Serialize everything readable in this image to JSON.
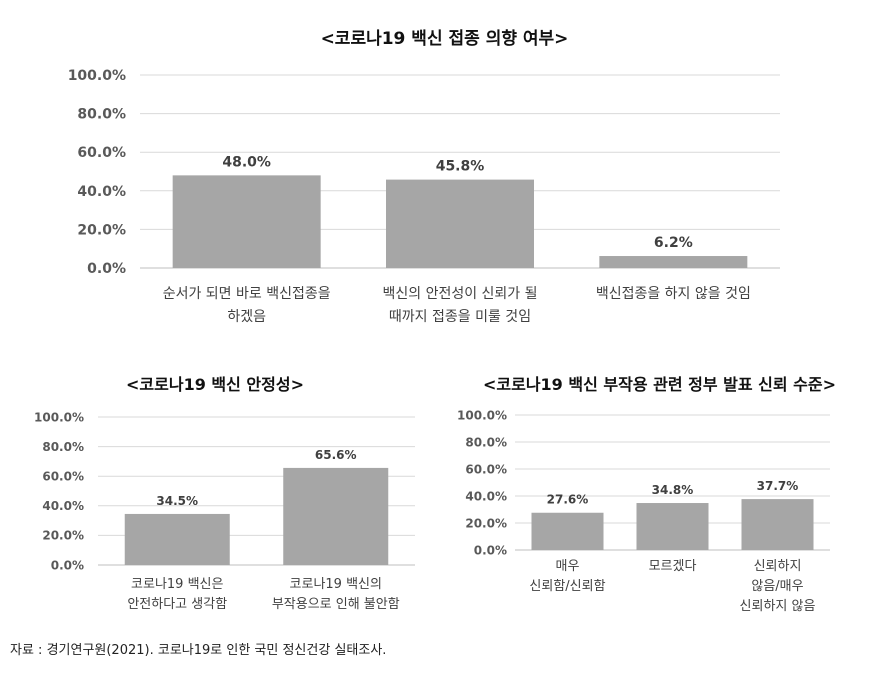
{
  "chart_data": [
    {
      "type": "bar",
      "title": "<코로나19 백신 접종 의향 여부>",
      "categories": [
        "순서가 되면 바로 백신접종을 하겠음",
        "백신의 안전성이 신뢰가 될 때까지 접종을 미룰 것임",
        "백신접종을 하지 않을 것임"
      ],
      "category_lines": [
        [
          "순서가 되면 바로 백신접종을",
          "하겠음"
        ],
        [
          "백신의 안전성이 신뢰가 될",
          "때까지 접종을 미룰 것임"
        ],
        [
          "백신접종을 하지 않을 것임"
        ]
      ],
      "values": [
        48.0,
        45.8,
        6.2
      ],
      "value_labels": [
        "48.0%",
        "45.8%",
        "6.2%"
      ],
      "yticks": [
        "0.0%",
        "20.0%",
        "40.0%",
        "60.0%",
        "80.0%",
        "100.0%"
      ],
      "ylim": [
        0,
        100
      ],
      "grid": true,
      "bar_color": "#a6a6a6"
    },
    {
      "type": "bar",
      "title": "<코로나19 백신 안정성>",
      "categories": [
        "코로나19 백신은 안전하다고 생각함",
        "코로나19 백신의 부작용으로 인해 불안함"
      ],
      "category_lines": [
        [
          "코로나19 백신은",
          "안전하다고 생각함"
        ],
        [
          "코로나19 백신의",
          "부작용으로 인해 불안함"
        ]
      ],
      "values": [
        34.5,
        65.6
      ],
      "value_labels": [
        "34.5%",
        "65.6%"
      ],
      "yticks": [
        "0.0%",
        "20.0%",
        "40.0%",
        "60.0%",
        "80.0%",
        "100.0%"
      ],
      "ylim": [
        0,
        100
      ],
      "grid": true,
      "bar_color": "#a6a6a6"
    },
    {
      "type": "bar",
      "title": "<코로나19 백신 부작용 관련 정부 발표 신뢰 수준>",
      "categories": [
        "매우 신뢰함/신뢰함",
        "모르겠다",
        "신뢰하지 않음/매우 신뢰하지 않음"
      ],
      "category_lines": [
        [
          "매우",
          "신뢰함/신뢰함"
        ],
        [
          "모르겠다"
        ],
        [
          "신뢰하지",
          "않음/매우",
          "신뢰하지 않음"
        ]
      ],
      "values": [
        27.6,
        34.8,
        37.7
      ],
      "value_labels": [
        "27.6%",
        "34.8%",
        "37.7%"
      ],
      "yticks": [
        "0.0%",
        "20.0%",
        "40.0%",
        "60.0%",
        "80.0%",
        "100.0%"
      ],
      "ylim": [
        0,
        100
      ],
      "grid": true,
      "bar_color": "#a6a6a6"
    }
  ],
  "source_note": "자료 : 경기연구원(2021). 코로나19로 인한 국민 정신건강 실태조사."
}
